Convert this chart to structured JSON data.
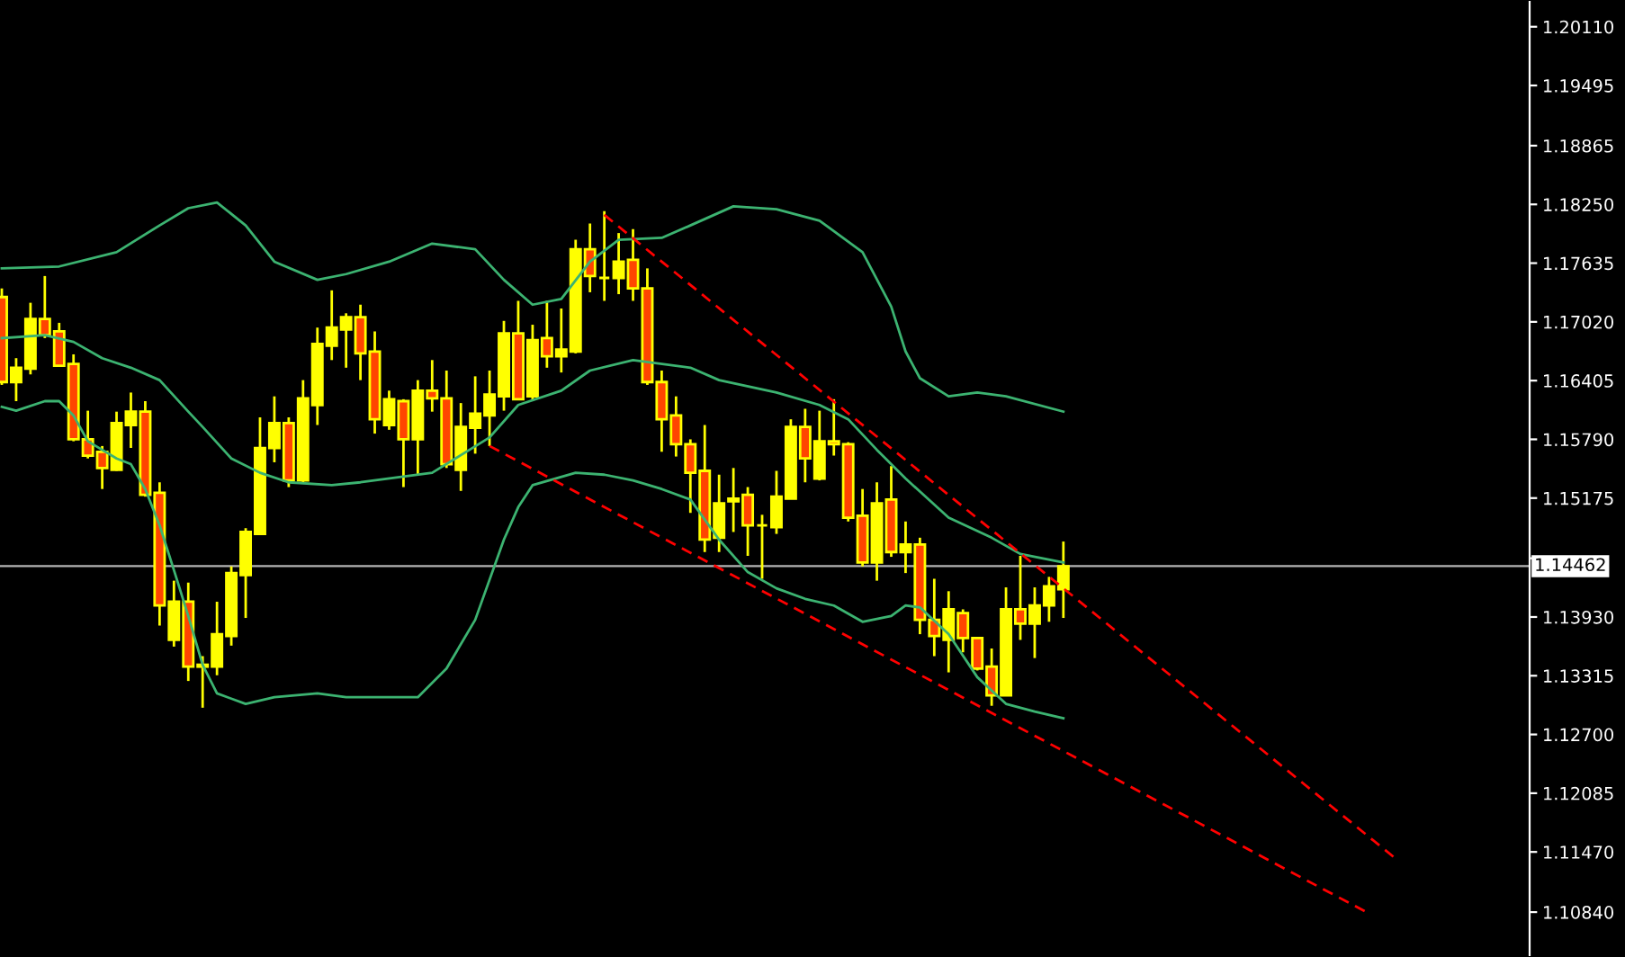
{
  "chart_data": {
    "type": "candlestick",
    "categories": [
      null,
      null,
      null,
      null,
      null,
      null,
      null,
      null,
      null,
      null,
      null,
      null,
      null,
      null,
      null,
      null,
      null,
      null,
      null,
      null,
      null,
      null,
      null,
      null,
      null,
      null,
      null,
      null,
      null,
      null,
      null,
      null,
      null,
      null,
      null,
      null,
      null,
      null,
      null,
      null,
      null,
      null,
      null,
      null,
      null,
      null,
      null,
      null,
      null,
      null,
      null,
      null,
      null,
      null,
      null,
      null,
      null,
      null,
      null,
      null,
      null,
      null,
      null,
      null,
      null,
      null,
      null,
      null,
      null,
      null,
      null,
      null,
      null,
      null,
      null,
      null,
      null,
      null,
      null,
      null,
      null,
      null,
      null,
      null,
      null,
      null,
      null,
      null,
      null,
      null,
      null,
      null,
      null,
      null,
      null,
      null,
      null,
      null,
      null,
      null,
      null,
      null,
      null,
      null,
      null,
      null,
      null
    ],
    "ohlc": [
      [
        1.1728,
        1.1737,
        1.1636,
        1.1639
      ],
      [
        1.1639,
        1.1664,
        1.1619,
        1.1654
      ],
      [
        1.1653,
        1.1722,
        1.1647,
        1.1705
      ],
      [
        1.1705,
        1.175,
        1.1685,
        1.1688
      ],
      [
        1.1692,
        1.1701,
        1.1656,
        1.1656
      ],
      [
        1.1658,
        1.1668,
        1.1577,
        1.1579
      ],
      [
        1.1579,
        1.1609,
        1.1559,
        1.1562
      ],
      [
        1.1566,
        1.1572,
        1.1527,
        1.1549
      ],
      [
        1.1547,
        1.1608,
        1.1546,
        1.1596
      ],
      [
        1.1594,
        1.1628,
        1.157,
        1.1608
      ],
      [
        1.1608,
        1.1619,
        1.1519,
        1.1521
      ],
      [
        1.1523,
        1.1534,
        1.1384,
        1.1405
      ],
      [
        1.1369,
        1.1431,
        1.1362,
        1.1409
      ],
      [
        1.1409,
        1.1429,
        1.1326,
        1.1341
      ],
      [
        1.1341,
        1.1352,
        1.1298,
        1.1343
      ],
      [
        1.1341,
        1.1409,
        1.1332,
        1.1375
      ],
      [
        1.1373,
        1.1446,
        1.1363,
        1.1439
      ],
      [
        1.1437,
        1.1486,
        1.1392,
        1.1482
      ],
      [
        1.148,
        1.1602,
        1.148,
        1.157
      ],
      [
        1.157,
        1.1624,
        1.1555,
        1.1596
      ],
      [
        1.1596,
        1.1602,
        1.1529,
        1.1536
      ],
      [
        1.1536,
        1.1641,
        1.1534,
        1.1622
      ],
      [
        1.1615,
        1.1696,
        1.1594,
        1.1679
      ],
      [
        1.1677,
        1.1735,
        1.1662,
        1.1696
      ],
      [
        1.1694,
        1.1711,
        1.1654,
        1.1707
      ],
      [
        1.1707,
        1.172,
        1.1641,
        1.1669
      ],
      [
        1.1671,
        1.1692,
        1.1585,
        1.16
      ],
      [
        1.1594,
        1.163,
        1.1589,
        1.1621
      ],
      [
        1.1619,
        1.1621,
        1.1529,
        1.1579
      ],
      [
        1.1579,
        1.1641,
        1.1542,
        1.163
      ],
      [
        1.163,
        1.1662,
        1.1608,
        1.1622
      ],
      [
        1.1622,
        1.1651,
        1.1549,
        1.1553
      ],
      [
        1.1547,
        1.1617,
        1.1525,
        1.1592
      ],
      [
        1.1591,
        1.1645,
        1.1564,
        1.1606
      ],
      [
        1.1604,
        1.1651,
        1.1572,
        1.1626
      ],
      [
        1.1624,
        1.1703,
        1.1609,
        1.169
      ],
      [
        1.169,
        1.1724,
        1.1621,
        1.1621
      ],
      [
        1.1624,
        1.1699,
        1.1619,
        1.1683
      ],
      [
        1.1685,
        1.1724,
        1.1654,
        1.1666
      ],
      [
        1.1666,
        1.1716,
        1.1649,
        1.1673
      ],
      [
        1.1671,
        1.1788,
        1.1669,
        1.1778
      ],
      [
        1.1778,
        1.1805,
        1.1733,
        1.175
      ],
      [
        1.1748,
        1.1818,
        1.1724,
        1.1748
      ],
      [
        1.1748,
        1.1795,
        1.1731,
        1.1765
      ],
      [
        1.1767,
        1.1799,
        1.1724,
        1.1737
      ],
      [
        1.1737,
        1.1758,
        1.1636,
        1.1639
      ],
      [
        1.1639,
        1.1651,
        1.1566,
        1.16
      ],
      [
        1.1604,
        1.1624,
        1.1561,
        1.1574
      ],
      [
        1.1574,
        1.1579,
        1.1502,
        1.1544
      ],
      [
        1.1546,
        1.1594,
        1.1461,
        1.1474
      ],
      [
        1.1476,
        1.1542,
        1.1461,
        1.1512
      ],
      [
        1.1514,
        1.1549,
        1.1482,
        1.1517
      ],
      [
        1.1521,
        1.1529,
        1.1457,
        1.1489
      ],
      [
        1.1489,
        1.15,
        1.1433,
        1.1489
      ],
      [
        1.1487,
        1.1546,
        1.148,
        1.1519
      ],
      [
        1.1517,
        1.16,
        1.1517,
        1.1592
      ],
      [
        1.1592,
        1.1611,
        1.1534,
        1.1559
      ],
      [
        1.1538,
        1.1609,
        1.1536,
        1.1577
      ],
      [
        1.1577,
        1.1621,
        1.1562,
        1.1574
      ],
      [
        1.1574,
        1.1576,
        1.1493,
        1.1497
      ],
      [
        1.1499,
        1.1527,
        1.1446,
        1.145
      ],
      [
        1.145,
        1.1534,
        1.1431,
        1.1512
      ],
      [
        1.1516,
        1.1551,
        1.1456,
        1.1461
      ],
      [
        1.1461,
        1.1493,
        1.1439,
        1.1469
      ],
      [
        1.1469,
        1.1476,
        1.1375,
        1.139
      ],
      [
        1.139,
        1.1433,
        1.1352,
        1.1373
      ],
      [
        1.1369,
        1.142,
        1.1335,
        1.1401
      ],
      [
        1.1397,
        1.1401,
        1.1356,
        1.1371
      ],
      [
        1.1371,
        1.1371,
        1.1337,
        1.1339
      ],
      [
        1.1341,
        1.136,
        1.13,
        1.1311
      ],
      [
        1.1311,
        1.1424,
        1.1311,
        1.1401
      ],
      [
        1.1401,
        1.1457,
        1.1369,
        1.1386
      ],
      [
        1.1386,
        1.1424,
        1.135,
        1.1405
      ],
      [
        1.1405,
        1.1435,
        1.1388,
        1.1425
      ],
      [
        1.1422,
        1.1472,
        1.1392,
        1.1446
      ],
      null,
      null,
      null,
      null,
      null,
      null,
      null,
      null,
      null,
      null,
      null,
      null,
      null,
      null,
      null,
      null,
      null,
      null,
      null,
      null,
      null,
      null,
      null,
      null,
      null,
      null,
      null,
      null,
      null,
      null,
      null,
      null
    ],
    "colors": [
      "#ff4500",
      "#ffff00",
      "#ffff00",
      "#ff4500",
      "#ff4500",
      "#ff4500",
      "#ff4500",
      "#ff4500",
      "#ffff00",
      "#ffff00",
      "#ff4500",
      "#ff4500",
      "#ffff00",
      "#ff4500",
      "#ffff00",
      "#ffff00",
      "#ffff00",
      "#ffff00",
      "#ffff00",
      "#ffff00",
      "#ff4500",
      "#ffff00",
      "#ffff00",
      "#ffff00",
      "#ffff00",
      "#ff4500",
      "#ff4500",
      "#ffff00",
      "#ff4500",
      "#ffff00",
      "#ff4500",
      "#ff4500",
      "#ffff00",
      "#ffff00",
      "#ffff00",
      "#ffff00",
      "#ff4500",
      "#ffff00",
      "#ff4500",
      "#ffff00",
      "#ffff00",
      "#ff4500",
      "#ffff00",
      "#ffff00",
      "#ff4500",
      "#ff4500",
      "#ff4500",
      "#ff4500",
      "#ff4500",
      "#ff4500",
      "#ffff00",
      "#ffff00",
      "#ff4500",
      "#ffff00",
      "#ffff00",
      "#ffff00",
      "#ff4500",
      "#ffff00",
      "#ff4500",
      "#ff4500",
      "#ff4500",
      "#ffff00",
      "#ff4500",
      "#ffff00",
      "#ff4500",
      "#ff4500",
      "#ffff00",
      "#ff4500",
      "#ff4500",
      "#ff4500",
      "#ffff00",
      "#ff4500",
      "#ffff00",
      "#ffff00",
      "#ffff00",
      null,
      null,
      null,
      null,
      null,
      null,
      null,
      null,
      null,
      null,
      null,
      null,
      null,
      null,
      null,
      null,
      null,
      null,
      null,
      null,
      null,
      null,
      null,
      null,
      null,
      null,
      null,
      null,
      null,
      null,
      null,
      null
    ],
    "series": [
      {
        "type": "line",
        "color": "#3cb371",
        "line_style": "solid",
        "values": [
          1.1758,
          null,
          null,
          null,
          1.176,
          null,
          null,
          null,
          1.1775,
          null,
          null,
          1.1803,
          null,
          1.1821,
          null,
          1.1827,
          null,
          1.1803,
          null,
          1.1765,
          null,
          null,
          1.1746,
          null,
          1.1752,
          null,
          null,
          1.1765,
          null,
          null,
          1.1784,
          null,
          null,
          1.1778,
          null,
          1.1746,
          null,
          1.172,
          null,
          1.1726,
          null,
          1.1765,
          null,
          1.1788,
          null,
          null,
          1.179,
          null,
          1.1803,
          null,
          null,
          1.1823,
          null,
          null,
          1.182,
          null,
          null,
          1.1808,
          null,
          null,
          1.1775,
          null,
          1.1718,
          1.1671,
          1.1643,
          null,
          1.1624,
          null,
          1.1628,
          null,
          1.1624,
          null,
          null,
          null,
          1.1608,
          null,
          null,
          null,
          null,
          null,
          null,
          null,
          null,
          null,
          null,
          null,
          null,
          null,
          null,
          null,
          null,
          null,
          null,
          null,
          null,
          null,
          null,
          null,
          null,
          null,
          null,
          null,
          null,
          null,
          null,
          null,
          null
        ]
      },
      {
        "type": "line",
        "color": "#3cb371",
        "line_style": "solid",
        "values": [
          1.1685,
          null,
          null,
          1.1688,
          null,
          1.1681,
          null,
          1.1664,
          null,
          1.1654,
          null,
          1.1641,
          null,
          1.1608,
          1.1592,
          null,
          1.1559,
          null,
          1.1544,
          null,
          1.1534,
          null,
          null,
          1.1531,
          null,
          1.1534,
          null,
          null,
          null,
          null,
          1.1544,
          null,
          null,
          null,
          1.1581,
          null,
          1.1615,
          null,
          null,
          1.163,
          null,
          1.1651,
          null,
          null,
          1.1662,
          null,
          null,
          null,
          1.1654,
          null,
          1.1641,
          null,
          null,
          null,
          1.1628,
          null,
          null,
          1.1615,
          null,
          1.16,
          null,
          1.1568,
          null,
          1.1538,
          null,
          null,
          1.1497,
          null,
          null,
          1.1476,
          null,
          1.1459,
          null,
          null,
          1.145,
          null,
          null,
          null,
          null,
          null,
          null,
          null,
          null,
          null,
          null,
          null,
          null,
          null,
          null,
          null,
          null,
          null,
          null,
          null,
          null,
          null,
          null,
          null,
          null,
          null,
          null,
          null,
          null,
          null,
          null,
          null,
          null
        ]
      },
      {
        "type": "line",
        "color": "#3cb371",
        "line_style": "solid",
        "values": [
          1.1613,
          1.1609,
          null,
          1.1619,
          1.1619,
          1.1604,
          1.1577,
          null,
          1.1559,
          1.1553,
          1.1527,
          1.1489,
          1.1442,
          1.1394,
          1.1343,
          1.1313,
          null,
          1.1302,
          null,
          1.1309,
          null,
          null,
          1.1313,
          null,
          1.1309,
          null,
          null,
          null,
          null,
          1.1309,
          null,
          1.1339,
          null,
          1.139,
          null,
          1.1474,
          1.1508,
          1.1531,
          null,
          null,
          1.1544,
          null,
          1.1542,
          null,
          1.1536,
          null,
          1.1527,
          null,
          1.1516,
          null,
          1.1474,
          null,
          1.144,
          null,
          1.1423,
          null,
          1.1412,
          null,
          1.1405,
          null,
          1.1388,
          null,
          1.1394,
          1.1405,
          1.1403,
          null,
          1.1375,
          null,
          1.133,
          null,
          1.1302,
          null,
          1.1294,
          null,
          1.1287,
          null,
          null,
          null,
          null,
          null,
          null,
          null,
          null,
          null,
          null,
          null,
          null,
          null,
          null,
          null,
          null,
          null,
          null,
          null,
          null,
          null,
          null,
          null,
          null,
          null,
          null,
          null,
          null,
          null,
          null,
          null,
          null
        ]
      },
      {
        "type": "line",
        "color": "#ff0000",
        "line_style": "dashed",
        "values": [
          null,
          null,
          null,
          null,
          null,
          null,
          null,
          null,
          null,
          null,
          null,
          null,
          null,
          null,
          null,
          null,
          null,
          null,
          null,
          null,
          null,
          null,
          null,
          null,
          null,
          null,
          null,
          null,
          null,
          null,
          null,
          null,
          null,
          null,
          null,
          null,
          null,
          null,
          null,
          null,
          null,
          null,
          1.1814,
          null,
          null,
          null,
          null,
          null,
          null,
          null,
          null,
          null,
          null,
          null,
          null,
          null,
          null,
          null,
          null,
          null,
          null,
          null,
          null,
          null,
          null,
          null,
          null,
          null,
          null,
          null,
          null,
          null,
          null,
          null,
          null,
          null,
          null,
          null,
          null,
          null,
          null,
          null,
          null,
          null,
          null,
          null,
          null,
          null,
          null,
          null,
          null,
          null,
          null,
          null,
          null,
          null,
          null,
          1.1142,
          null,
          null,
          null,
          null,
          null,
          null,
          null,
          null,
          null
        ]
      },
      {
        "type": "line",
        "color": "#ff0000",
        "line_style": "dashed",
        "values": [
          null,
          null,
          null,
          null,
          null,
          null,
          null,
          null,
          null,
          null,
          null,
          null,
          null,
          null,
          null,
          null,
          null,
          null,
          null,
          null,
          null,
          null,
          null,
          null,
          null,
          null,
          null,
          null,
          null,
          null,
          null,
          null,
          null,
          null,
          1.1572,
          null,
          null,
          null,
          null,
          null,
          null,
          null,
          null,
          null,
          null,
          null,
          null,
          null,
          null,
          null,
          null,
          null,
          null,
          null,
          null,
          null,
          null,
          null,
          null,
          null,
          null,
          null,
          null,
          null,
          null,
          null,
          null,
          null,
          null,
          null,
          null,
          null,
          null,
          null,
          null,
          null,
          null,
          null,
          null,
          null,
          null,
          null,
          null,
          null,
          null,
          null,
          null,
          null,
          null,
          null,
          null,
          null,
          null,
          null,
          null,
          1.1085,
          null,
          null,
          null,
          null,
          null,
          null,
          null,
          null,
          null,
          null,
          null
        ]
      }
    ],
    "ref_lines": [
      {
        "axis": "y",
        "value": 1.14462,
        "label": "1.14462",
        "color": "#b4b4b4"
      }
    ],
    "ylim": [
      1.1039,
      1.2037
    ],
    "yticks": [
      {
        "value": 1.2011,
        "label": "1.20110"
      },
      {
        "value": 1.19495,
        "label": "1.19495"
      },
      {
        "value": 1.18865,
        "label": "1.18865"
      },
      {
        "value": 1.1825,
        "label": "1.18250"
      },
      {
        "value": 1.17635,
        "label": "1.17635"
      },
      {
        "value": 1.1702,
        "label": "1.17020"
      },
      {
        "value": 1.16405,
        "label": "1.16405"
      },
      {
        "value": 1.1579,
        "label": "1.15790"
      },
      {
        "value": 1.15175,
        "label": "1.15175"
      },
      {
        "value": 1.14545,
        "label": null
      },
      {
        "value": 1.1393,
        "label": "1.13930"
      },
      {
        "value": 1.13315,
        "label": "1.13315"
      },
      {
        "value": 1.127,
        "label": "1.12700"
      },
      {
        "value": 1.12085,
        "label": "1.12085"
      },
      {
        "value": 1.1147,
        "label": "1.11470"
      },
      {
        "value": 1.1084,
        "label": "1.10840"
      }
    ],
    "tick_labels": "y"
  }
}
